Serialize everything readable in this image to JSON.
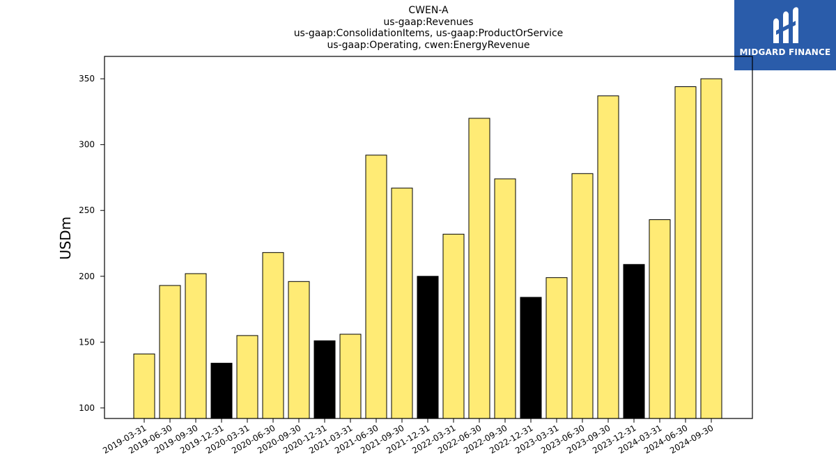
{
  "title_lines": [
    "CWEN-A",
    "us-gaap:Revenues",
    "us-gaap:ConsolidationItems, us-gaap:ProductOrService",
    "us-gaap:Operating, cwen:EnergyRevenue"
  ],
  "logo": {
    "text": "MIDGARD FINANCE",
    "background": "#2a5caa",
    "icon": "midgard-logo-icon"
  },
  "chart_data": {
    "type": "bar",
    "title": "CWEN-A",
    "xlabel": "",
    "ylabel": "USDm",
    "ylim": [
      92,
      367
    ],
    "yticks": [
      100,
      150,
      200,
      250,
      300,
      350
    ],
    "grid": false,
    "legend": "none",
    "categories": [
      "2019-03-31",
      "2019-06-30",
      "2019-09-30",
      "2019-12-31",
      "2020-03-31",
      "2020-06-30",
      "2020-09-30",
      "2020-12-31",
      "2021-03-31",
      "2021-06-30",
      "2021-09-30",
      "2021-12-31",
      "2022-03-31",
      "2022-06-30",
      "2022-09-30",
      "2022-12-31",
      "2023-03-31",
      "2023-06-30",
      "2023-09-30",
      "2023-12-31",
      "2024-03-31",
      "2024-06-30",
      "2024-09-30"
    ],
    "values": [
      141,
      193,
      202,
      134,
      155,
      218,
      196,
      151,
      156,
      292,
      267,
      200,
      232,
      320,
      274,
      184,
      199,
      278,
      337,
      209,
      243,
      344,
      350
    ],
    "highlight_indices": [
      3,
      7,
      11,
      15,
      19
    ],
    "colors": {
      "default": "#ffeb75",
      "highlight": "#000000",
      "edge": "#000000"
    }
  }
}
